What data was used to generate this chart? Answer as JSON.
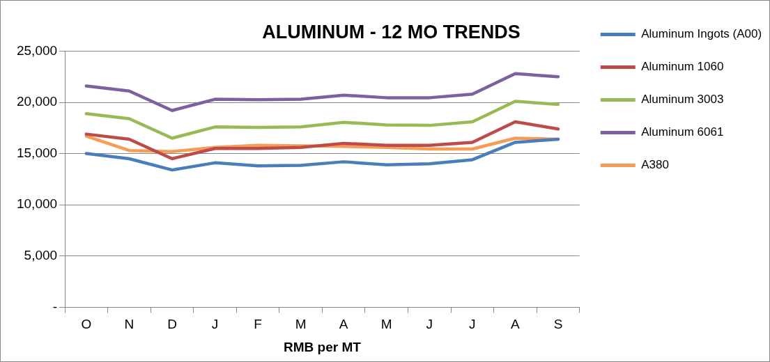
{
  "chart_data": {
    "type": "line",
    "title": "ALUMINUM - 12 MO TRENDS",
    "xlabel": "RMB per MT",
    "categories": [
      "O",
      "N",
      "D",
      "J",
      "F",
      "M",
      "A",
      "M",
      "J",
      "J",
      "A",
      "S"
    ],
    "series": [
      {
        "name": "Aluminum Ingots (A00)",
        "color": "#4a7ebb",
        "values": [
          15000,
          14500,
          13400,
          14100,
          13800,
          13850,
          14200,
          13900,
          14000,
          14400,
          16100,
          16400
        ]
      },
      {
        "name": "Aluminum 1060",
        "color": "#be4b48",
        "values": [
          16900,
          16400,
          14500,
          15500,
          15500,
          15600,
          16000,
          15800,
          15800,
          16100,
          18100,
          17400
        ]
      },
      {
        "name": "Aluminum 3003",
        "color": "#98b954",
        "values": [
          18900,
          18400,
          16500,
          17600,
          17550,
          17600,
          18050,
          17800,
          17750,
          18100,
          20100,
          19800
        ]
      },
      {
        "name": "Aluminum 6061",
        "color": "#7d60a0",
        "values": [
          21600,
          21100,
          19200,
          20300,
          20250,
          20300,
          20700,
          20450,
          20450,
          20800,
          22800,
          22500
        ]
      },
      {
        "name": "A380",
        "color": "#f59d56",
        "values": [
          16700,
          15300,
          15200,
          15600,
          15800,
          15750,
          15700,
          15600,
          15450,
          15450,
          16500,
          16400
        ]
      }
    ],
    "ylim": [
      0,
      25000
    ],
    "yticks": [
      {
        "value": 0,
        "label": "-"
      },
      {
        "value": 5000,
        "label": "5,000"
      },
      {
        "value": 10000,
        "label": "10,000"
      },
      {
        "value": 15000,
        "label": "15,000"
      },
      {
        "value": 20000,
        "label": "20,000"
      },
      {
        "value": 25000,
        "label": "25,000"
      }
    ],
    "grid": "y",
    "legend": "right",
    "marker": "none",
    "line_style": "solid"
  }
}
